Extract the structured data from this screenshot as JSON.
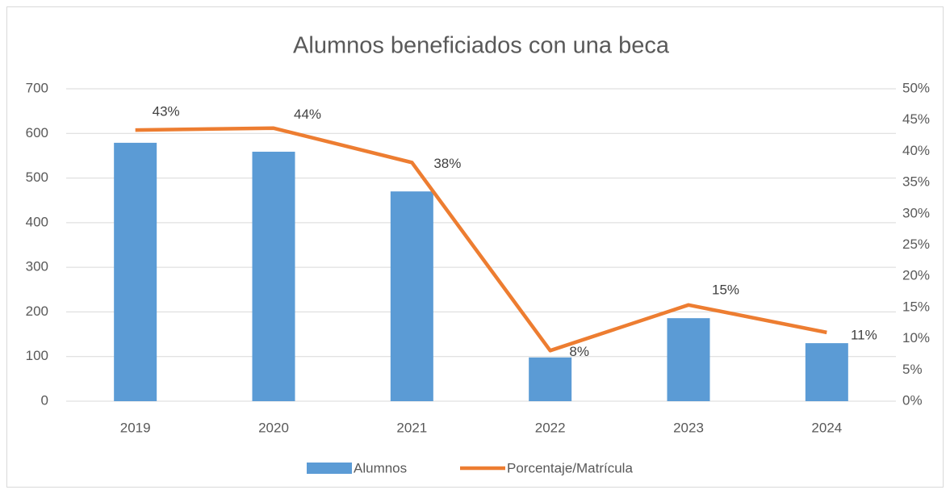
{
  "chart_data": {
    "type": "bar_line",
    "title": "Alumnos beneficiados con una beca",
    "categories": [
      "2019",
      "2020",
      "2021",
      "2022",
      "2023",
      "2024"
    ],
    "series": [
      {
        "name": "Alumnos",
        "type": "bar",
        "color": "#5b9bd5",
        "values": [
          579,
          559,
          470,
          98,
          186,
          130
        ]
      },
      {
        "name": "Porcentaje/Matrícula",
        "type": "line",
        "axis": "y2",
        "color": "#ed7d31",
        "values": [
          43.4,
          43.7,
          38.2,
          8.1,
          15.4,
          11
        ],
        "value_labels": [
          "43%",
          "44%",
          "38%",
          "8%",
          "15%",
          "11%"
        ]
      }
    ],
    "ylim": [
      0,
      700
    ],
    "yticks": [
      0,
      100,
      200,
      300,
      400,
      500,
      600,
      700
    ],
    "y2lim": [
      0,
      50
    ],
    "y2ticks": [
      {
        "value": 0,
        "label": "0%"
      },
      {
        "value": 5,
        "label": "5%"
      },
      {
        "value": 10,
        "label": "10%"
      },
      {
        "value": 15,
        "label": "15%"
      },
      {
        "value": 20,
        "label": "20%"
      },
      {
        "value": 25,
        "label": "25%"
      },
      {
        "value": 30,
        "label": "30%"
      },
      {
        "value": 35,
        "label": "35%"
      },
      {
        "value": 40,
        "label": "40%"
      },
      {
        "value": 45,
        "label": "45%"
      },
      {
        "value": 50,
        "label": "50%"
      }
    ],
    "grid": true,
    "legend": "bottom"
  }
}
